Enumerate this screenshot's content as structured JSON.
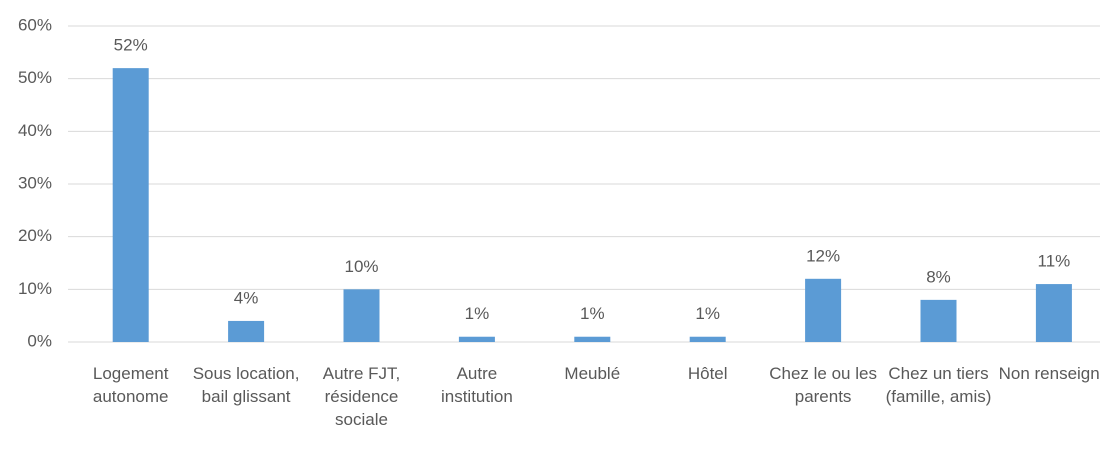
{
  "chart_data": {
    "type": "bar",
    "categories": [
      "Logement autonome",
      "Sous location, bail glissant",
      "Autre FJT, résidence sociale",
      "Autre institution",
      "Meublé",
      "Hôtel",
      "Chez le ou les parents",
      "Chez un tiers (famille, amis)",
      "Non renseigné"
    ],
    "values": [
      52,
      4,
      10,
      1,
      1,
      1,
      12,
      8,
      11
    ],
    "value_labels": [
      "52%",
      "4%",
      "10%",
      "1%",
      "1%",
      "1%",
      "12%",
      "8%",
      "11%"
    ],
    "color": "#5b9bd5",
    "ylim": [
      0,
      60
    ],
    "yticks": [
      {
        "value": 0,
        "label": "0%"
      },
      {
        "value": 10,
        "label": "10%"
      },
      {
        "value": 20,
        "label": "20%"
      },
      {
        "value": 30,
        "label": "30%"
      },
      {
        "value": 40,
        "label": "40%"
      },
      {
        "value": 50,
        "label": "50%"
      },
      {
        "value": 60,
        "label": "60%"
      }
    ],
    "grid": true
  }
}
